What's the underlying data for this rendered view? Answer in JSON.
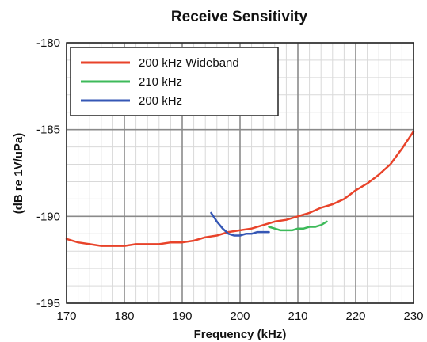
{
  "chart_data": {
    "type": "line",
    "title": "Receive Sensitivity",
    "xlabel": "Frequency (kHz)",
    "ylabel": "(dB re 1V/uPa)",
    "xlim": [
      170,
      230
    ],
    "ylim": [
      -195,
      -180
    ],
    "x_ticks": [
      170,
      180,
      190,
      200,
      210,
      220,
      230
    ],
    "y_ticks": [
      -180,
      -185,
      -190,
      -195
    ],
    "x_minor_step": 2,
    "y_minor_step": 1,
    "grid": true,
    "legend_position": "top-left",
    "series": [
      {
        "name": "200 kHz Wideband",
        "color": "#e8432a",
        "x": [
          170,
          172,
          174,
          176,
          178,
          180,
          182,
          184,
          186,
          188,
          190,
          192,
          194,
          196,
          198,
          200,
          202,
          204,
          206,
          208,
          210,
          212,
          214,
          216,
          218,
          220,
          222,
          224,
          226,
          228,
          230
        ],
        "y": [
          -191.3,
          -191.5,
          -191.6,
          -191.7,
          -191.7,
          -191.7,
          -191.6,
          -191.6,
          -191.6,
          -191.5,
          -191.5,
          -191.4,
          -191.2,
          -191.1,
          -190.9,
          -190.8,
          -190.7,
          -190.5,
          -190.3,
          -190.2,
          -190.0,
          -189.8,
          -189.5,
          -189.3,
          -189.0,
          -188.5,
          -188.1,
          -187.6,
          -187.0,
          -186.1,
          -185.1
        ]
      },
      {
        "name": "210 kHz",
        "color": "#3dba5a",
        "x": [
          205,
          206,
          207,
          208,
          209,
          210,
          211,
          212,
          213,
          214,
          215
        ],
        "y": [
          -190.6,
          -190.7,
          -190.8,
          -190.8,
          -190.8,
          -190.7,
          -190.7,
          -190.6,
          -190.6,
          -190.5,
          -190.3
        ]
      },
      {
        "name": "200 kHz",
        "color": "#3557b5",
        "x": [
          195,
          196,
          197,
          198,
          199,
          200,
          201,
          202,
          203,
          204,
          205
        ],
        "y": [
          -189.8,
          -190.3,
          -190.7,
          -191.0,
          -191.1,
          -191.1,
          -191.0,
          -191.0,
          -190.9,
          -190.9,
          -190.9
        ]
      }
    ]
  }
}
